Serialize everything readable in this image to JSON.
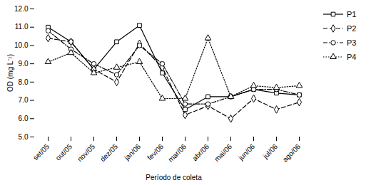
{
  "chart_data": {
    "type": "line",
    "categories": [
      "set/05",
      "out/05",
      "nov/05",
      "dez/05",
      "jan/06",
      "fev/06",
      "mar/06",
      "abr/06",
      "mai/06",
      "jun/06",
      "jul/06",
      "ago/06"
    ],
    "series": [
      {
        "name": "P1",
        "color": "#000000",
        "marker": "square",
        "line_style": "solid",
        "values": [
          11.0,
          10.2,
          8.7,
          10.2,
          11.1,
          8.5,
          6.5,
          7.2,
          7.2,
          7.6,
          7.4,
          7.3
        ]
      },
      {
        "name": "P2",
        "color": "#000000",
        "marker": "diamond",
        "line_style": "dashed",
        "values": [
          10.4,
          10.2,
          8.7,
          8.0,
          10.1,
          8.8,
          6.2,
          6.7,
          6.0,
          7.1,
          6.5,
          6.9
        ]
      },
      {
        "name": "P3",
        "color": "#000000",
        "marker": "circle",
        "line_style": "dashdot",
        "values": [
          10.8,
          9.8,
          9.0,
          8.4,
          10.0,
          9.0,
          6.8,
          6.8,
          7.2,
          7.6,
          7.6,
          7.3
        ]
      },
      {
        "name": "P4",
        "color": "#000000",
        "marker": "triangle",
        "line_style": "dotted",
        "values": [
          9.1,
          9.6,
          8.5,
          8.8,
          9.1,
          7.1,
          7.1,
          10.4,
          7.2,
          7.8,
          7.7,
          7.8
        ]
      }
    ],
    "ylim": [
      5,
      12
    ],
    "yticks": [
      5,
      6,
      7,
      8,
      9,
      10,
      11,
      12
    ],
    "ylabel": "OD (mg L⁻¹)",
    "xlabel": "Período de coleta",
    "grid": false,
    "legend": "right"
  }
}
